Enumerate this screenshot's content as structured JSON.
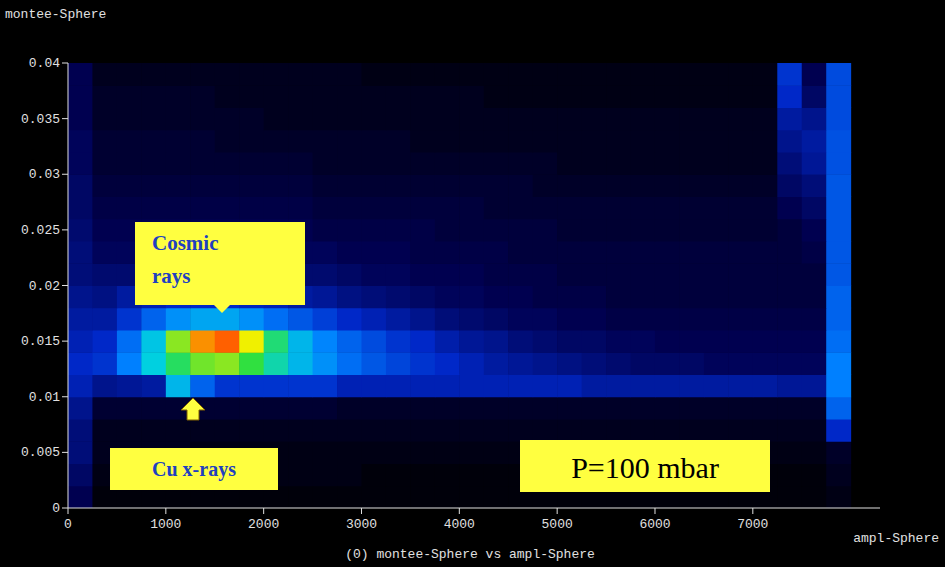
{
  "chart_data": {
    "type": "heatmap",
    "title": "(0) montee-Sphere vs ampl-Sphere",
    "x_label": "ampl-Sphere",
    "y_label": "montee-Sphere",
    "xlim": [
      0,
      8300
    ],
    "ylim": [
      0,
      0.04
    ],
    "xticks": [
      0,
      1000,
      2000,
      3000,
      4000,
      5000,
      6000,
      7000
    ],
    "yticks": [
      0,
      0.005,
      0.01,
      0.015,
      0.02,
      0.025,
      0.03,
      0.035,
      0.04
    ],
    "x_bins": [
      0,
      250,
      500,
      750,
      1000,
      1250,
      1500,
      1750,
      2000,
      2250,
      2500,
      2750,
      3000,
      3250,
      3500,
      3750,
      4000,
      4250,
      4500,
      4750,
      5000,
      5250,
      5500,
      5750,
      6000,
      6250,
      6500,
      6750,
      7000,
      7250,
      7500,
      7750,
      8000
    ],
    "y_bins": [
      0,
      0.002,
      0.004,
      0.006,
      0.008,
      0.01,
      0.012,
      0.014,
      0.016,
      0.018,
      0.02,
      0.022,
      0.024,
      0.026,
      0.028,
      0.03,
      0.032,
      0.034,
      0.036,
      0.038,
      0.04
    ],
    "zlim": [
      0,
      100
    ],
    "cells": [
      [
        8,
        1,
        1,
        1,
        1,
        1,
        1,
        1,
        1,
        1,
        1,
        1,
        1,
        1,
        1,
        1,
        1,
        1,
        1,
        1,
        1,
        1,
        1,
        1,
        1,
        1,
        1,
        1,
        1,
        1,
        1,
        2
      ],
      [
        10,
        2,
        2,
        2,
        2,
        2,
        2,
        2,
        2,
        2,
        2,
        2,
        1,
        1,
        1,
        1,
        1,
        1,
        1,
        1,
        1,
        1,
        1,
        1,
        1,
        1,
        1,
        1,
        1,
        1,
        1,
        3
      ],
      [
        12,
        3,
        3,
        3,
        3,
        2,
        2,
        2,
        2,
        2,
        2,
        2,
        2,
        2,
        2,
        2,
        2,
        2,
        2,
        2,
        2,
        2,
        2,
        2,
        2,
        2,
        2,
        2,
        2,
        2,
        2,
        4
      ],
      [
        12,
        3,
        3,
        3,
        3,
        3,
        3,
        3,
        3,
        3,
        3,
        3,
        3,
        3,
        3,
        3,
        3,
        3,
        3,
        3,
        3,
        3,
        3,
        3,
        3,
        3,
        3,
        3,
        3,
        3,
        3,
        20
      ],
      [
        14,
        5,
        5,
        5,
        5,
        5,
        5,
        5,
        5,
        5,
        5,
        4,
        4,
        4,
        4,
        4,
        4,
        4,
        4,
        4,
        4,
        4,
        4,
        4,
        4,
        4,
        4,
        4,
        4,
        4,
        4,
        30
      ],
      [
        18,
        14,
        15,
        16,
        45,
        30,
        22,
        22,
        22,
        22,
        22,
        18,
        18,
        18,
        18,
        18,
        18,
        18,
        18,
        18,
        18,
        16,
        16,
        16,
        16,
        16,
        16,
        16,
        16,
        15,
        15,
        35
      ],
      [
        20,
        22,
        35,
        50,
        62,
        70,
        72,
        65,
        55,
        45,
        38,
        32,
        28,
        25,
        22,
        20,
        18,
        16,
        15,
        14,
        13,
        12,
        11,
        10,
        10,
        10,
        9,
        9,
        9,
        9,
        9,
        35
      ],
      [
        18,
        20,
        32,
        48,
        72,
        88,
        92,
        80,
        60,
        45,
        36,
        30,
        26,
        22,
        20,
        17,
        15,
        14,
        12,
        11,
        10,
        10,
        9,
        9,
        8,
        8,
        8,
        8,
        8,
        8,
        8,
        32
      ],
      [
        16,
        16,
        22,
        30,
        38,
        42,
        42,
        38,
        32,
        28,
        24,
        20,
        18,
        16,
        14,
        12,
        11,
        10,
        9,
        9,
        8,
        8,
        7,
        7,
        7,
        7,
        7,
        7,
        7,
        7,
        7,
        30
      ],
      [
        14,
        13,
        16,
        18,
        20,
        20,
        20,
        19,
        18,
        16,
        15,
        13,
        12,
        11,
        10,
        9,
        9,
        8,
        8,
        7,
        7,
        7,
        6,
        6,
        6,
        6,
        6,
        6,
        6,
        6,
        6,
        30
      ],
      [
        12,
        11,
        11,
        11,
        11,
        11,
        11,
        11,
        11,
        11,
        11,
        10,
        9,
        9,
        8,
        8,
        8,
        7,
        7,
        7,
        6,
        6,
        6,
        6,
        6,
        6,
        6,
        6,
        6,
        6,
        6,
        28
      ],
      [
        12,
        9,
        9,
        9,
        9,
        9,
        9,
        9,
        9,
        9,
        9,
        8,
        8,
        8,
        7,
        7,
        7,
        7,
        6,
        6,
        6,
        6,
        6,
        6,
        6,
        6,
        6,
        6,
        6,
        6,
        7,
        28
      ],
      [
        11,
        8,
        8,
        8,
        8,
        8,
        8,
        8,
        8,
        8,
        7,
        7,
        7,
        7,
        7,
        6,
        6,
        6,
        6,
        6,
        5,
        5,
        5,
        5,
        5,
        5,
        5,
        5,
        5,
        6,
        8,
        28
      ],
      [
        10,
        7,
        7,
        7,
        7,
        7,
        7,
        7,
        7,
        7,
        6,
        6,
        6,
        6,
        6,
        6,
        6,
        5,
        5,
        5,
        5,
        5,
        5,
        5,
        5,
        5,
        5,
        5,
        5,
        8,
        10,
        28
      ],
      [
        10,
        6,
        6,
        6,
        6,
        6,
        6,
        6,
        6,
        6,
        5,
        5,
        5,
        5,
        5,
        5,
        5,
        5,
        5,
        4,
        4,
        4,
        4,
        4,
        4,
        4,
        4,
        4,
        4,
        10,
        12,
        28
      ],
      [
        9,
        5,
        5,
        5,
        5,
        5,
        5,
        5,
        5,
        5,
        4,
        4,
        4,
        4,
        4,
        4,
        4,
        4,
        4,
        4,
        3,
        3,
        3,
        3,
        3,
        3,
        3,
        3,
        3,
        12,
        15,
        27
      ],
      [
        9,
        5,
        5,
        5,
        5,
        5,
        4,
        4,
        4,
        4,
        4,
        4,
        4,
        4,
        3,
        3,
        3,
        3,
        3,
        3,
        3,
        3,
        3,
        3,
        3,
        3,
        3,
        3,
        3,
        14,
        16,
        27
      ],
      [
        8,
        4,
        4,
        4,
        4,
        4,
        4,
        4,
        3,
        3,
        3,
        3,
        3,
        3,
        3,
        3,
        3,
        3,
        3,
        3,
        3,
        3,
        3,
        3,
        3,
        3,
        3,
        3,
        3,
        16,
        14,
        26
      ],
      [
        8,
        4,
        4,
        4,
        4,
        4,
        3,
        3,
        3,
        3,
        3,
        3,
        3,
        3,
        3,
        3,
        3,
        2,
        2,
        2,
        2,
        2,
        2,
        2,
        2,
        2,
        2,
        2,
        2,
        20,
        10,
        26
      ],
      [
        8,
        3,
        3,
        3,
        3,
        3,
        3,
        3,
        3,
        3,
        3,
        3,
        2,
        2,
        2,
        2,
        2,
        2,
        2,
        2,
        2,
        2,
        2,
        2,
        2,
        2,
        2,
        2,
        2,
        22,
        8,
        26
      ]
    ],
    "annotations": [
      "Cosmic rays",
      "Cu x-rays",
      "P=100 mbar"
    ]
  }
}
